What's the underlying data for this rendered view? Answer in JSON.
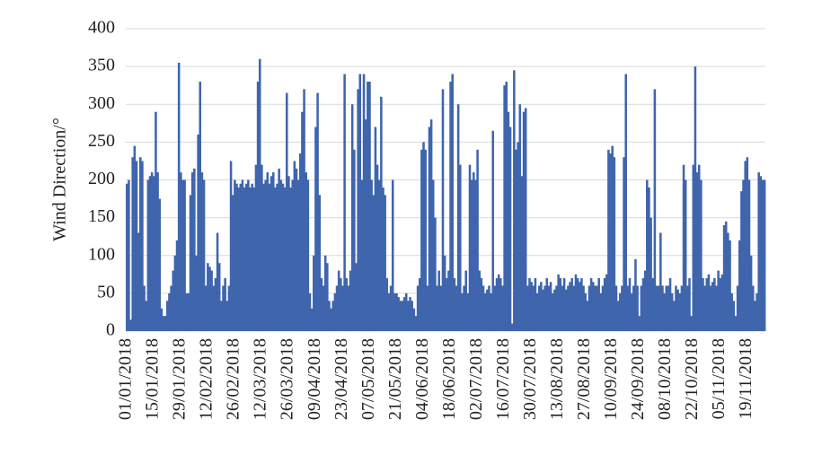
{
  "chart_data": {
    "type": "bar",
    "y_label": "Wind Direction/°",
    "color": "#3f65ad",
    "grid": true,
    "ylim": [
      0,
      400
    ],
    "yticks": [
      0,
      50,
      100,
      150,
      200,
      250,
      300,
      350,
      400
    ],
    "xticks": [
      "01/01/2018",
      "15/01/2018",
      "29/01/2018",
      "12/02/2018",
      "26/02/2018",
      "12/03/2018",
      "26/03/2018",
      "09/04/2018",
      "23/04/2018",
      "07/05/2018",
      "21/05/2018",
      "04/06/2018",
      "18/06/2018",
      "02/07/2018",
      "16/07/2018",
      "30/07/2018",
      "13/08/2018",
      "27/08/2018",
      "10/09/2018",
      "24/09/2018",
      "08/10/2018",
      "22/10/2018",
      "05/11/2018",
      "19/11/2018"
    ],
    "x": [
      "01/01/2018",
      "02/01/2018",
      "03/01/2018",
      "04/01/2018",
      "05/01/2018",
      "06/01/2018",
      "07/01/2018",
      "08/01/2018",
      "09/01/2018",
      "10/01/2018",
      "11/01/2018",
      "12/01/2018",
      "13/01/2018",
      "14/01/2018",
      "15/01/2018",
      "16/01/2018",
      "17/01/2018",
      "18/01/2018",
      "19/01/2018",
      "20/01/2018",
      "21/01/2018",
      "22/01/2018",
      "23/01/2018",
      "24/01/2018",
      "25/01/2018",
      "26/01/2018",
      "27/01/2018",
      "28/01/2018",
      "29/01/2018",
      "30/01/2018",
      "31/01/2018",
      "01/02/2018",
      "02/02/2018",
      "03/02/2018",
      "04/02/2018",
      "05/02/2018",
      "06/02/2018",
      "07/02/2018",
      "08/02/2018",
      "09/02/2018",
      "10/02/2018",
      "11/02/2018",
      "12/02/2018",
      "13/02/2018",
      "14/02/2018",
      "15/02/2018",
      "16/02/2018",
      "17/02/2018",
      "18/02/2018",
      "19/02/2018",
      "20/02/2018",
      "21/02/2018",
      "22/02/2018",
      "23/02/2018",
      "24/02/2018",
      "25/02/2018",
      "26/02/2018",
      "27/02/2018",
      "28/02/2018",
      "01/03/2018",
      "02/03/2018",
      "03/03/2018",
      "04/03/2018",
      "05/03/2018",
      "06/03/2018",
      "07/03/2018",
      "08/03/2018",
      "09/03/2018",
      "10/03/2018",
      "11/03/2018",
      "12/03/2018",
      "13/03/2018",
      "14/03/2018",
      "15/03/2018",
      "16/03/2018",
      "17/03/2018",
      "18/03/2018",
      "19/03/2018",
      "20/03/2018",
      "21/03/2018",
      "22/03/2018",
      "23/03/2018",
      "24/03/2018",
      "25/03/2018",
      "26/03/2018",
      "27/03/2018",
      "28/03/2018",
      "29/03/2018",
      "30/03/2018",
      "31/03/2018",
      "01/04/2018",
      "02/04/2018",
      "03/04/2018",
      "04/04/2018",
      "05/04/2018",
      "06/04/2018",
      "07/04/2018",
      "08/04/2018",
      "09/04/2018",
      "10/04/2018",
      "11/04/2018",
      "12/04/2018",
      "13/04/2018",
      "14/04/2018",
      "15/04/2018",
      "16/04/2018",
      "17/04/2018",
      "18/04/2018",
      "19/04/2018",
      "20/04/2018",
      "21/04/2018",
      "22/04/2018",
      "23/04/2018",
      "24/04/2018",
      "25/04/2018",
      "26/04/2018",
      "27/04/2018",
      "28/04/2018",
      "29/04/2018",
      "30/04/2018",
      "01/05/2018",
      "02/05/2018",
      "03/05/2018",
      "04/05/2018",
      "05/05/2018",
      "06/05/2018",
      "07/05/2018",
      "08/05/2018",
      "09/05/2018",
      "10/05/2018",
      "11/05/2018",
      "12/05/2018",
      "13/05/2018",
      "14/05/2018",
      "15/05/2018",
      "16/05/2018",
      "17/05/2018",
      "18/05/2018",
      "19/05/2018",
      "20/05/2018",
      "21/05/2018",
      "22/05/2018",
      "23/05/2018",
      "24/05/2018",
      "25/05/2018",
      "26/05/2018",
      "27/05/2018",
      "28/05/2018",
      "29/05/2018",
      "30/05/2018",
      "31/05/2018",
      "01/06/2018",
      "02/06/2018",
      "03/06/2018",
      "04/06/2018",
      "05/06/2018",
      "06/06/2018",
      "07/06/2018",
      "08/06/2018",
      "09/06/2018",
      "10/06/2018",
      "11/06/2018",
      "12/06/2018",
      "13/06/2018",
      "14/06/2018",
      "15/06/2018",
      "16/06/2018",
      "17/06/2018",
      "18/06/2018",
      "19/06/2018",
      "20/06/2018",
      "21/06/2018",
      "22/06/2018",
      "23/06/2018",
      "24/06/2018",
      "25/06/2018",
      "26/06/2018",
      "27/06/2018",
      "28/06/2018",
      "29/06/2018",
      "30/06/2018",
      "01/07/2018",
      "02/07/2018",
      "03/07/2018",
      "04/07/2018",
      "05/07/2018",
      "06/07/2018",
      "07/07/2018",
      "08/07/2018",
      "09/07/2018",
      "10/07/2018",
      "11/07/2018",
      "12/07/2018",
      "13/07/2018",
      "14/07/2018",
      "15/07/2018",
      "16/07/2018",
      "17/07/2018",
      "18/07/2018",
      "19/07/2018",
      "20/07/2018",
      "21/07/2018",
      "22/07/2018",
      "23/07/2018",
      "24/07/2018",
      "25/07/2018",
      "26/07/2018",
      "27/07/2018",
      "28/07/2018",
      "29/07/2018",
      "30/07/2018",
      "31/07/2018",
      "01/08/2018",
      "02/08/2018",
      "03/08/2018",
      "04/08/2018",
      "05/08/2018",
      "06/08/2018",
      "07/08/2018",
      "08/08/2018",
      "09/08/2018",
      "10/08/2018",
      "11/08/2018",
      "12/08/2018",
      "13/08/2018",
      "14/08/2018",
      "15/08/2018",
      "16/08/2018",
      "17/08/2018",
      "18/08/2018",
      "19/08/2018",
      "20/08/2018",
      "21/08/2018",
      "22/08/2018",
      "23/08/2018",
      "24/08/2018",
      "25/08/2018",
      "26/08/2018",
      "27/08/2018",
      "28/08/2018",
      "29/08/2018",
      "30/08/2018",
      "31/08/2018",
      "01/09/2018",
      "02/09/2018",
      "03/09/2018",
      "04/09/2018",
      "05/09/2018",
      "06/09/2018",
      "07/09/2018",
      "08/09/2018",
      "09/09/2018",
      "10/09/2018",
      "11/09/2018",
      "12/09/2018",
      "13/09/2018",
      "14/09/2018",
      "15/09/2018",
      "16/09/2018",
      "17/09/2018",
      "18/09/2018",
      "19/09/2018",
      "20/09/2018",
      "21/09/2018",
      "22/09/2018",
      "23/09/2018",
      "24/09/2018",
      "25/09/2018",
      "26/09/2018",
      "27/09/2018",
      "28/09/2018",
      "29/09/2018",
      "30/09/2018",
      "01/10/2018",
      "02/10/2018",
      "03/10/2018",
      "04/10/2018",
      "05/10/2018",
      "06/10/2018",
      "07/10/2018",
      "08/10/2018",
      "09/10/2018",
      "10/10/2018",
      "11/10/2018",
      "12/10/2018",
      "13/10/2018",
      "14/10/2018",
      "15/10/2018",
      "16/10/2018",
      "17/10/2018",
      "18/10/2018",
      "19/10/2018",
      "20/10/2018",
      "21/10/2018",
      "22/10/2018",
      "23/10/2018",
      "24/10/2018",
      "25/10/2018",
      "26/10/2018",
      "27/10/2018",
      "28/10/2018",
      "29/10/2018",
      "30/10/2018",
      "31/10/2018",
      "01/11/2018",
      "02/11/2018",
      "03/11/2018",
      "04/11/2018",
      "05/11/2018",
      "06/11/2018",
      "07/11/2018",
      "08/11/2018",
      "09/11/2018",
      "10/11/2018",
      "11/11/2018",
      "12/11/2018",
      "13/11/2018",
      "14/11/2018",
      "15/11/2018",
      "16/11/2018",
      "17/11/2018",
      "18/11/2018",
      "19/11/2018",
      "20/11/2018",
      "21/11/2018",
      "22/11/2018",
      "23/11/2018",
      "24/11/2018",
      "25/11/2018",
      "26/11/2018",
      "27/11/2018",
      "28/11/2018"
    ],
    "values": [
      195,
      200,
      15,
      230,
      245,
      225,
      130,
      230,
      225,
      60,
      40,
      200,
      205,
      210,
      205,
      290,
      210,
      175,
      30,
      20,
      20,
      40,
      50,
      60,
      80,
      100,
      120,
      355,
      210,
      200,
      200,
      50,
      50,
      180,
      210,
      215,
      100,
      260,
      330,
      210,
      200,
      60,
      90,
      85,
      80,
      60,
      70,
      130,
      90,
      40,
      60,
      70,
      40,
      60,
      225,
      180,
      200,
      195,
      190,
      195,
      200,
      190,
      195,
      200,
      190,
      195,
      190,
      220,
      330,
      360,
      220,
      195,
      200,
      210,
      195,
      205,
      210,
      190,
      195,
      215,
      200,
      195,
      190,
      315,
      205,
      190,
      200,
      225,
      215,
      200,
      235,
      290,
      320,
      210,
      200,
      50,
      30,
      100,
      270,
      315,
      180,
      70,
      60,
      100,
      90,
      40,
      30,
      40,
      50,
      60,
      80,
      70,
      60,
      340,
      70,
      60,
      80,
      300,
      240,
      90,
      320,
      340,
      200,
      340,
      280,
      330,
      330,
      200,
      180,
      270,
      220,
      200,
      310,
      190,
      180,
      70,
      50,
      60,
      200,
      50,
      50,
      45,
      40,
      40,
      45,
      50,
      40,
      45,
      40,
      30,
      20,
      60,
      70,
      240,
      250,
      240,
      60,
      270,
      280,
      200,
      150,
      60,
      80,
      60,
      320,
      100,
      70,
      80,
      330,
      340,
      70,
      60,
      300,
      220,
      50,
      60,
      80,
      50,
      220,
      200,
      210,
      200,
      240,
      80,
      70,
      60,
      50,
      55,
      60,
      50,
      265,
      60,
      70,
      75,
      70,
      60,
      325,
      330,
      290,
      270,
      10,
      345,
      240,
      250,
      300,
      205,
      290,
      295,
      60,
      70,
      65,
      60,
      70,
      50,
      60,
      65,
      55,
      60,
      70,
      60,
      65,
      50,
      55,
      60,
      75,
      70,
      60,
      70,
      55,
      60,
      65,
      70,
      60,
      75,
      70,
      65,
      70,
      60,
      50,
      40,
      60,
      70,
      65,
      60,
      60,
      70,
      50,
      60,
      70,
      75,
      240,
      235,
      245,
      230,
      60,
      40,
      50,
      60,
      230,
      340,
      60,
      70,
      50,
      60,
      95,
      60,
      20,
      60,
      70,
      80,
      200,
      190,
      150,
      70,
      320,
      60,
      60,
      130,
      60,
      50,
      60,
      60,
      70,
      50,
      40,
      60,
      55,
      50,
      60,
      220,
      200,
      60,
      70,
      20,
      220,
      350,
      210,
      220,
      200,
      70,
      60,
      70,
      75,
      60,
      65,
      70,
      60,
      80,
      70,
      75,
      140,
      145,
      130,
      120,
      50,
      40,
      20,
      60,
      120,
      185,
      200,
      225,
      230,
      200,
      100,
      60,
      40,
      50,
      210,
      205,
      200,
      200
    ]
  }
}
